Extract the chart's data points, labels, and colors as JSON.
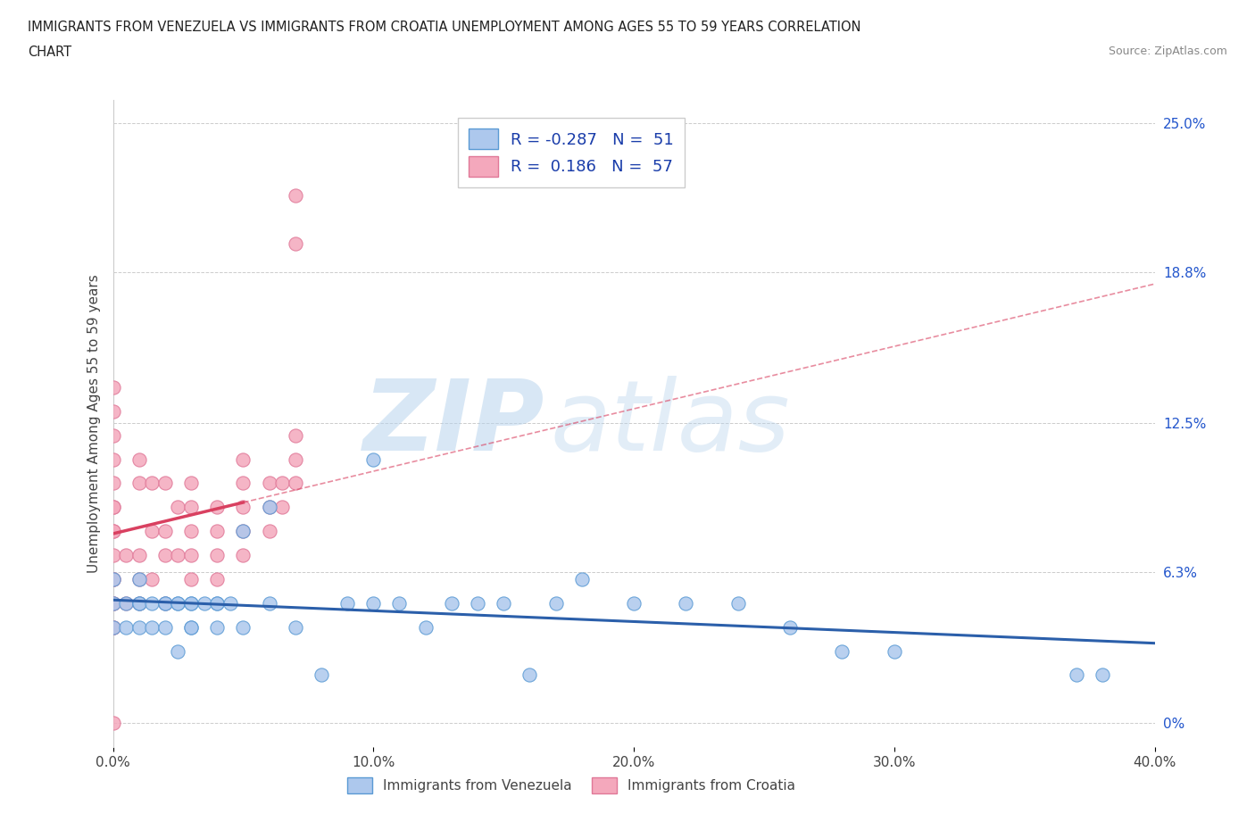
{
  "title_line1": "IMMIGRANTS FROM VENEZUELA VS IMMIGRANTS FROM CROATIA UNEMPLOYMENT AMONG AGES 55 TO 59 YEARS CORRELATION",
  "title_line2": "CHART",
  "source_text": "Source: ZipAtlas.com",
  "ylabel": "Unemployment Among Ages 55 to 59 years",
  "xlim": [
    0.0,
    0.4
  ],
  "ylim": [
    -0.01,
    0.26
  ],
  "xtick_labels": [
    "0.0%",
    "10.0%",
    "20.0%",
    "30.0%",
    "40.0%"
  ],
  "xtick_vals": [
    0.0,
    0.1,
    0.2,
    0.3,
    0.4
  ],
  "ytick_labels_right": [
    "0%",
    "6.3%",
    "12.5%",
    "18.8%",
    "25.0%"
  ],
  "ytick_vals": [
    0.0,
    0.063,
    0.125,
    0.188,
    0.25
  ],
  "venezuela_color": "#adc8ed",
  "croatia_color": "#f4a8bc",
  "venezuela_edge": "#5a9ad4",
  "croatia_edge": "#e07898",
  "trend_venezuela_color": "#2b5faa",
  "trend_croatia_color": "#d94060",
  "R_venezuela": -0.287,
  "N_venezuela": 51,
  "R_croatia": 0.186,
  "N_croatia": 57,
  "watermark_zip": "ZIP",
  "watermark_atlas": "atlas",
  "background_color": "#ffffff",
  "legend_label_venezuela": "Immigrants from Venezuela",
  "legend_label_croatia": "Immigrants from Croatia",
  "venezuela_x": [
    0.0,
    0.0,
    0.0,
    0.005,
    0.005,
    0.01,
    0.01,
    0.01,
    0.01,
    0.015,
    0.015,
    0.02,
    0.02,
    0.02,
    0.025,
    0.025,
    0.025,
    0.03,
    0.03,
    0.03,
    0.03,
    0.035,
    0.04,
    0.04,
    0.04,
    0.045,
    0.05,
    0.05,
    0.06,
    0.06,
    0.07,
    0.08,
    0.09,
    0.1,
    0.1,
    0.11,
    0.12,
    0.13,
    0.14,
    0.15,
    0.16,
    0.17,
    0.18,
    0.2,
    0.22,
    0.24,
    0.26,
    0.28,
    0.3,
    0.37,
    0.38
  ],
  "venezuela_y": [
    0.04,
    0.05,
    0.06,
    0.04,
    0.05,
    0.04,
    0.05,
    0.05,
    0.06,
    0.04,
    0.05,
    0.04,
    0.05,
    0.05,
    0.03,
    0.05,
    0.05,
    0.04,
    0.04,
    0.05,
    0.05,
    0.05,
    0.04,
    0.05,
    0.05,
    0.05,
    0.04,
    0.08,
    0.05,
    0.09,
    0.04,
    0.02,
    0.05,
    0.05,
    0.11,
    0.05,
    0.04,
    0.05,
    0.05,
    0.05,
    0.02,
    0.05,
    0.06,
    0.05,
    0.05,
    0.05,
    0.04,
    0.03,
    0.03,
    0.02,
    0.02
  ],
  "croatia_x": [
    0.0,
    0.0,
    0.0,
    0.0,
    0.0,
    0.0,
    0.0,
    0.0,
    0.0,
    0.0,
    0.0,
    0.0,
    0.0,
    0.0,
    0.0,
    0.0,
    0.0,
    0.005,
    0.005,
    0.01,
    0.01,
    0.01,
    0.01,
    0.01,
    0.015,
    0.015,
    0.015,
    0.02,
    0.02,
    0.02,
    0.02,
    0.025,
    0.025,
    0.03,
    0.03,
    0.03,
    0.03,
    0.03,
    0.04,
    0.04,
    0.04,
    0.04,
    0.05,
    0.05,
    0.05,
    0.05,
    0.05,
    0.06,
    0.06,
    0.06,
    0.065,
    0.065,
    0.07,
    0.07,
    0.07,
    0.07,
    0.07
  ],
  "croatia_y": [
    0.0,
    0.04,
    0.04,
    0.05,
    0.05,
    0.06,
    0.06,
    0.07,
    0.08,
    0.08,
    0.09,
    0.09,
    0.1,
    0.11,
    0.12,
    0.13,
    0.14,
    0.05,
    0.07,
    0.05,
    0.06,
    0.07,
    0.1,
    0.11,
    0.06,
    0.08,
    0.1,
    0.05,
    0.07,
    0.08,
    0.1,
    0.07,
    0.09,
    0.06,
    0.07,
    0.08,
    0.09,
    0.1,
    0.06,
    0.07,
    0.08,
    0.09,
    0.07,
    0.08,
    0.09,
    0.1,
    0.11,
    0.08,
    0.09,
    0.1,
    0.09,
    0.1,
    0.1,
    0.11,
    0.12,
    0.2,
    0.22
  ]
}
